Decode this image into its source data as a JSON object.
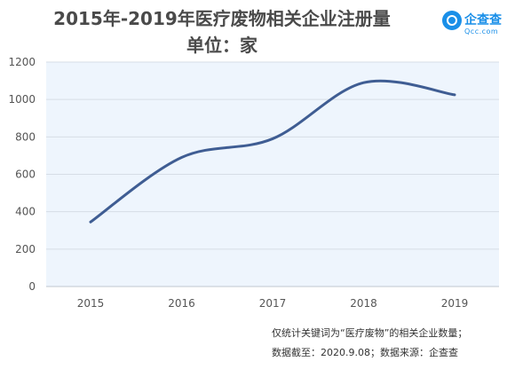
{
  "chart_data": {
    "type": "line",
    "title": "2015年-2019年医疗废物相关企业注册量",
    "subtitle": "单位：家",
    "categories": [
      "2015",
      "2016",
      "2017",
      "2018",
      "2019"
    ],
    "series": [
      {
        "values": [
          345,
          690,
          790,
          1090,
          1025
        ]
      }
    ],
    "yticks": [
      "0",
      "200",
      "400",
      "600",
      "800",
      "1000",
      "1200"
    ],
    "ylim": [
      0,
      1200
    ],
    "grid": true,
    "legend": "none",
    "line_color": "#3f5d93"
  },
  "brand": {
    "name": "企查查",
    "domain": "Qcc.com"
  },
  "notes": {
    "line1": "仅统计关键词为“医疗废物”的相关企业数量；",
    "line2": "数据截至：2020.9.08；数据来源：企查查"
  }
}
